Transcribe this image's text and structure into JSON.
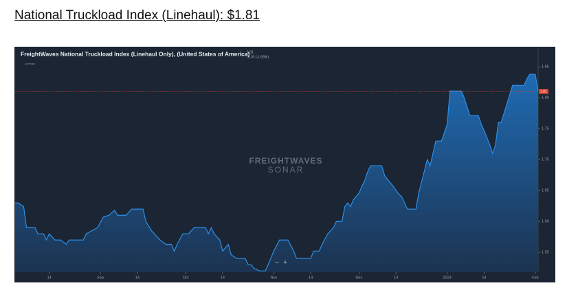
{
  "heading": "National Truckload Index (Linehaul): $1.81",
  "chart_data": {
    "type": "area",
    "title": "FreightWaves National Truckload Index (Linehaul Only), (United States of America)",
    "current": 1.81,
    "change": "-0.03 (-1.63%)",
    "watermark": [
      "FREIGHTWAVES",
      "SONAR"
    ],
    "zoom": [
      "−",
      "+"
    ],
    "x": [
      "2023-08-02",
      "2023-08-03",
      "2023-08-05",
      "2023-08-06",
      "2023-08-09",
      "2023-08-10",
      "2023-08-12",
      "2023-08-13",
      "2023-08-14",
      "2023-08-16",
      "2023-08-18",
      "2023-08-20",
      "2023-08-21",
      "2023-08-26",
      "2023-08-27",
      "2023-08-31",
      "2023-09-02",
      "2023-09-04",
      "2023-09-06",
      "2023-09-07",
      "2023-09-10",
      "2023-09-12",
      "2023-09-16",
      "2023-09-17",
      "2023-09-19",
      "2023-09-22",
      "2023-09-24",
      "2023-09-26",
      "2023-09-27",
      "2023-09-28",
      "2023-09-30",
      "2023-10-02",
      "2023-10-04",
      "2023-10-08",
      "2023-10-09",
      "2023-10-10",
      "2023-10-11",
      "2023-10-13",
      "2023-10-14",
      "2023-10-16",
      "2023-10-17",
      "2023-10-19",
      "2023-10-22",
      "2023-10-23",
      "2023-10-24",
      "2023-10-25",
      "2023-10-27",
      "2023-10-29",
      "2023-10-30",
      "2023-11-01",
      "2023-11-03",
      "2023-11-06",
      "2023-11-08",
      "2023-11-09",
      "2023-11-14",
      "2023-11-15",
      "2023-11-17",
      "2023-11-18",
      "2023-11-20",
      "2023-11-22",
      "2023-11-23",
      "2023-11-25",
      "2023-11-26",
      "2023-11-27",
      "2023-11-28",
      "2023-11-29",
      "2023-12-01",
      "2023-12-02",
      "2023-12-03",
      "2023-12-04",
      "2023-12-05",
      "2023-12-09",
      "2023-12-10",
      "2023-12-13",
      "2023-12-15",
      "2023-12-16",
      "2023-12-18",
      "2023-12-21",
      "2023-12-22",
      "2023-12-25",
      "2023-12-26",
      "2023-12-28",
      "2023-12-30",
      "2024-01-01",
      "2024-01-02",
      "2024-01-06",
      "2024-01-07",
      "2024-01-09",
      "2024-01-12",
      "2024-01-13",
      "2024-01-14",
      "2024-01-16",
      "2024-01-17",
      "2024-01-18",
      "2024-01-19",
      "2024-01-20",
      "2024-01-22",
      "2024-01-24",
      "2024-01-28",
      "2024-01-29",
      "2024-01-30",
      "2024-02-01",
      "2024-02-02"
    ],
    "series": [
      {
        "name": "Linehaul",
        "color": "#2d8fe8",
        "values": [
          1.63,
          1.63,
          1.624,
          1.59,
          1.59,
          1.58,
          1.58,
          1.57,
          1.58,
          1.57,
          1.57,
          1.563,
          1.57,
          1.57,
          1.58,
          1.59,
          1.607,
          1.61,
          1.618,
          1.61,
          1.61,
          1.62,
          1.62,
          1.6,
          1.585,
          1.57,
          1.563,
          1.563,
          1.552,
          1.563,
          1.58,
          1.58,
          1.59,
          1.59,
          1.58,
          1.59,
          1.58,
          1.57,
          1.552,
          1.563,
          1.546,
          1.54,
          1.54,
          1.53,
          1.53,
          1.524,
          1.52,
          1.52,
          1.53,
          1.552,
          1.57,
          1.57,
          1.552,
          1.54,
          1.54,
          1.552,
          1.552,
          1.563,
          1.58,
          1.59,
          1.6,
          1.6,
          1.624,
          1.63,
          1.624,
          1.635,
          1.646,
          1.657,
          1.666,
          1.68,
          1.69,
          1.69,
          1.674,
          1.657,
          1.644,
          1.64,
          1.62,
          1.62,
          1.646,
          1.7,
          1.69,
          1.73,
          1.73,
          1.757,
          1.811,
          1.811,
          1.8,
          1.771,
          1.771,
          1.757,
          1.747,
          1.724,
          1.71,
          1.724,
          1.76,
          1.76,
          1.79,
          1.82,
          1.82,
          1.83,
          1.838,
          1.838,
          1.81
        ]
      }
    ],
    "xlim": [
      "2023-08-02",
      "2024-02-02"
    ],
    "xticks": [
      {
        "value": "2023-08-14",
        "label": "14"
      },
      {
        "value": "2023-09-01",
        "label": "Sep"
      },
      {
        "value": "2023-09-14",
        "label": "14"
      },
      {
        "value": "2023-10-01",
        "label": "Oct"
      },
      {
        "value": "2023-10-14",
        "label": "14"
      },
      {
        "value": "2023-11-01",
        "label": "Nov"
      },
      {
        "value": "2023-11-14",
        "label": "14"
      },
      {
        "value": "2023-12-01",
        "label": "Dec"
      },
      {
        "value": "2023-12-14",
        "label": "14"
      },
      {
        "value": "2024-01-01",
        "label": "2024"
      },
      {
        "value": "2024-01-14",
        "label": "14"
      },
      {
        "value": "2024-02-01",
        "label": "Feb"
      }
    ],
    "ylim": [
      1.518,
      1.877
    ],
    "yticks": [
      1.55,
      {
        "value": 1.6,
        "label": "1.60"
      },
      1.65,
      {
        "value": 1.7,
        "label": "1.70"
      },
      1.75,
      {
        "value": 1.8,
        "label": "1.80"
      },
      1.85
    ],
    "grid": false
  }
}
